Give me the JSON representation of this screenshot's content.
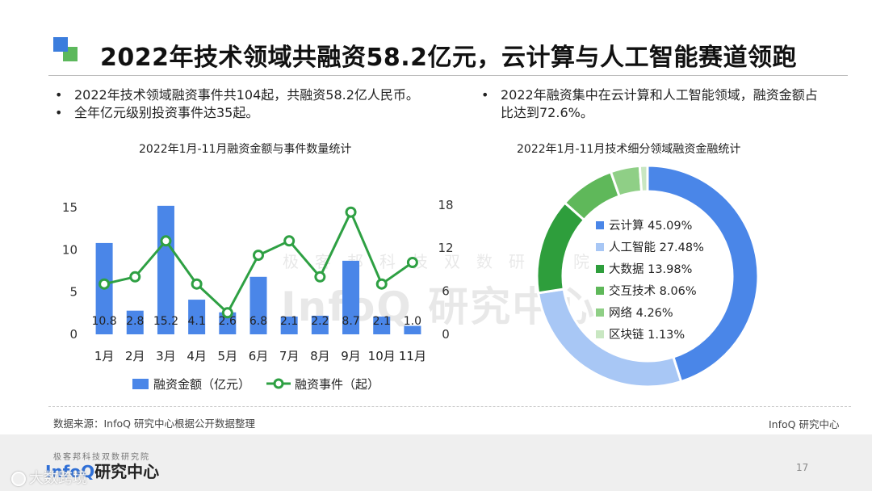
{
  "header": {
    "title": "2022年技术领域共融资58.2亿元，云计算与人工智能赛道领跑"
  },
  "bullets_left": [
    "2022年技术领域融资事件共104起，共融资58.2亿人民币。",
    "全年亿元级别投资事件达35起。"
  ],
  "bullets_right": [
    "2022年融资集中在云计算和人工智能领域，融资金额占比达到72.6%。"
  ],
  "watermark": {
    "sub": "极客邦科技双数研究院",
    "main": "InfoQ 研究中心"
  },
  "source": "数据来源：InfoQ 研究中心根据公开数据整理",
  "brand": "InfoQ 研究中心",
  "footer": {
    "tagline": "极客邦科技双数研究院",
    "logo_en": "InfoQ",
    "logo_cn": "研究中心",
    "page_number": "17",
    "corner_watermark": "大数跨境"
  },
  "colors": {
    "bar": "#4a86e8",
    "line": "#2ea043",
    "donut": [
      "#4a86e8",
      "#a8c7f5",
      "#2e9e3c",
      "#5fb85a",
      "#8fcf86",
      "#c9e7c2"
    ]
  },
  "chart_data": [
    {
      "type": "bar+line",
      "title": "2022年1月-11月融资金额与事件数量统计",
      "categories": [
        "1月",
        "2月",
        "3月",
        "4月",
        "5月",
        "6月",
        "7月",
        "8月",
        "9月",
        "10月",
        "11月"
      ],
      "series": [
        {
          "name": "融资金额（亿元）",
          "type": "bar",
          "axis": "left",
          "values": [
            10.8,
            2.8,
            15.2,
            4.1,
            2.6,
            6.8,
            2.1,
            2.2,
            8.7,
            2.1,
            1.0
          ],
          "labels": [
            "10.8",
            "2.8",
            "15.2",
            "4.1",
            "2.6",
            "6.8",
            "2.1",
            "2.2",
            "8.7",
            "2.1",
            "1.0"
          ]
        },
        {
          "name": "融资事件（起）",
          "type": "line",
          "axis": "right",
          "values": [
            7,
            8,
            13,
            7,
            3,
            11,
            13,
            8,
            17,
            7,
            10
          ]
        }
      ],
      "y_left": {
        "ticks": [
          "0",
          "5",
          "10",
          "15"
        ],
        "range": [
          0,
          17
        ]
      },
      "y_right": {
        "ticks": [
          "0",
          "6",
          "12",
          "18"
        ],
        "range": [
          0,
          20
        ]
      },
      "legend_position": "bottom"
    },
    {
      "type": "pie",
      "title": "2022年1月-11月技术细分领域融资金融统计",
      "slices": [
        {
          "label": "云计算",
          "value": 45.09,
          "text": "45.09%"
        },
        {
          "label": "人工智能",
          "value": 27.48,
          "text": "27.48%"
        },
        {
          "label": "大数据",
          "value": 13.98,
          "text": "13.98%"
        },
        {
          "label": "交互技术",
          "value": 8.06,
          "text": "8.06%"
        },
        {
          "label": "网络",
          "value": 4.26,
          "text": "4.26%"
        },
        {
          "label": "区块链",
          "value": 1.13,
          "text": "1.13%"
        }
      ],
      "legend_position": "center"
    }
  ]
}
